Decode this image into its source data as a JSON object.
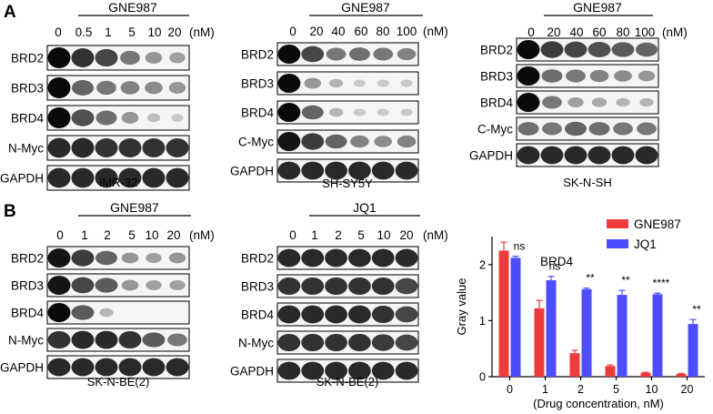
{
  "figure": {
    "panel_a_letter": "A",
    "panel_b_letter": "B"
  },
  "blots": [
    {
      "id": "a1",
      "drug": "GNE987",
      "concentrations": [
        "0",
        "0.5",
        "1",
        "5",
        "10",
        "20"
      ],
      "unit": "(nM)",
      "cell_line": "IMR-32",
      "rows": [
        {
          "label": "BRD2",
          "intensity": [
            1.0,
            0.8,
            0.7,
            0.45,
            0.3,
            0.25
          ]
        },
        {
          "label": "BRD3",
          "intensity": [
            1.0,
            0.55,
            0.45,
            0.4,
            0.35,
            0.3
          ]
        },
        {
          "label": "BRD4",
          "intensity": [
            1.0,
            0.65,
            0.5,
            0.3,
            0.1,
            0.05
          ]
        },
        {
          "label": "N-Myc",
          "intensity": [
            0.85,
            0.85,
            0.8,
            0.8,
            0.8,
            0.8
          ]
        },
        {
          "label": "GAPDH",
          "intensity": [
            0.85,
            0.85,
            0.85,
            0.85,
            0.85,
            0.85
          ]
        }
      ]
    },
    {
      "id": "a2",
      "drug": "GNE987",
      "concentrations": [
        "0",
        "20",
        "40",
        "60",
        "80",
        "100"
      ],
      "unit": "(nM)",
      "cell_line": "SH-SY5Y",
      "rows": [
        {
          "label": "BRD2",
          "intensity": [
            1.0,
            0.7,
            0.45,
            0.5,
            0.45,
            0.4
          ]
        },
        {
          "label": "BRD3",
          "intensity": [
            1.0,
            0.3,
            0.15,
            0.05,
            0.05,
            0.05
          ]
        },
        {
          "label": "BRD4",
          "intensity": [
            1.0,
            0.55,
            0.15,
            0.05,
            0.05,
            0.05
          ]
        },
        {
          "label": "C-Myc",
          "intensity": [
            0.95,
            0.75,
            0.55,
            0.4,
            0.35,
            0.4
          ]
        },
        {
          "label": "GAPDH",
          "intensity": [
            0.85,
            0.85,
            0.85,
            0.85,
            0.85,
            0.85
          ]
        }
      ]
    },
    {
      "id": "a3",
      "drug": "GNE987",
      "concentrations": [
        "0",
        "20",
        "40",
        "60",
        "80",
        "100"
      ],
      "unit": "(nM)",
      "cell_line": "SK-N-SH",
      "rows": [
        {
          "label": "BRD2",
          "intensity": [
            1.0,
            0.75,
            0.7,
            0.65,
            0.6,
            0.55
          ]
        },
        {
          "label": "BRD3",
          "intensity": [
            1.0,
            0.5,
            0.45,
            0.4,
            0.35,
            0.3
          ]
        },
        {
          "label": "BRD4",
          "intensity": [
            1.0,
            0.45,
            0.25,
            0.2,
            0.15,
            0.15
          ]
        },
        {
          "label": "C-Myc",
          "intensity": [
            0.5,
            0.45,
            0.55,
            0.5,
            0.45,
            0.45
          ]
        },
        {
          "label": "GAPDH",
          "intensity": [
            0.85,
            0.85,
            0.85,
            0.85,
            0.85,
            0.85
          ]
        }
      ]
    },
    {
      "id": "b1",
      "drug": "GNE987",
      "concentrations": [
        "0",
        "1",
        "2",
        "5",
        "10",
        "20"
      ],
      "unit": "(nM)",
      "cell_line": "SK-N-BE(2)",
      "rows": [
        {
          "label": "BRD2",
          "intensity": [
            0.95,
            0.75,
            0.55,
            0.3,
            0.25,
            0.3
          ]
        },
        {
          "label": "BRD3",
          "intensity": [
            0.95,
            0.7,
            0.6,
            0.3,
            0.25,
            0.25
          ]
        },
        {
          "label": "BRD4",
          "intensity": [
            1.0,
            0.6,
            0.15,
            0.0,
            0.0,
            0.0
          ]
        },
        {
          "label": "N-Myc",
          "intensity": [
            0.8,
            0.85,
            0.85,
            0.8,
            0.6,
            0.45
          ]
        },
        {
          "label": "GAPDH",
          "intensity": [
            0.85,
            0.85,
            0.85,
            0.85,
            0.85,
            0.85
          ]
        }
      ]
    },
    {
      "id": "b2",
      "drug": "JQ1",
      "concentrations": [
        "0",
        "1",
        "2",
        "5",
        "10",
        "20"
      ],
      "unit": "(nM)",
      "cell_line": "SK-N-BE(2)",
      "rows": [
        {
          "label": "BRD2",
          "intensity": [
            0.85,
            0.85,
            0.85,
            0.85,
            0.85,
            0.85
          ]
        },
        {
          "label": "BRD3",
          "intensity": [
            0.8,
            0.8,
            0.8,
            0.8,
            0.8,
            0.7
          ]
        },
        {
          "label": "BRD4",
          "intensity": [
            0.85,
            0.85,
            0.85,
            0.85,
            0.8,
            0.7
          ]
        },
        {
          "label": "N-Myc",
          "intensity": [
            0.8,
            0.8,
            0.8,
            0.8,
            0.75,
            0.7
          ]
        },
        {
          "label": "GAPDH",
          "intensity": [
            0.85,
            0.85,
            0.85,
            0.85,
            0.85,
            0.85
          ]
        }
      ]
    }
  ],
  "colors": {
    "gne987": "#ef3b3b",
    "jq1": "#4d4dff",
    "band": "#0a0a0a",
    "blot_bg": "#f5f5f5"
  },
  "chart_data": {
    "type": "bar",
    "title": "BRD4",
    "xlabel": "(Drug concentration, nM)",
    "ylabel": "Gray value",
    "categories": [
      "0",
      "1",
      "2",
      "5",
      "10",
      "20"
    ],
    "ylim": [
      0,
      2.5
    ],
    "yticks": [
      "0",
      "1",
      "2"
    ],
    "series": [
      {
        "name": "GNE987",
        "values": [
          2.25,
          1.22,
          0.42,
          0.19,
          0.07,
          0.05
        ],
        "errors": [
          0.15,
          0.14,
          0.05,
          0.02,
          0.01,
          0.01
        ]
      },
      {
        "name": "JQ1",
        "values": [
          2.12,
          1.72,
          1.56,
          1.46,
          1.47,
          0.94
        ],
        "errors": [
          0.03,
          0.07,
          0.02,
          0.08,
          0.02,
          0.08
        ]
      }
    ],
    "significance": [
      "ns",
      "ns",
      "**",
      "**",
      "****",
      "**"
    ],
    "legend_position": "top-right"
  }
}
